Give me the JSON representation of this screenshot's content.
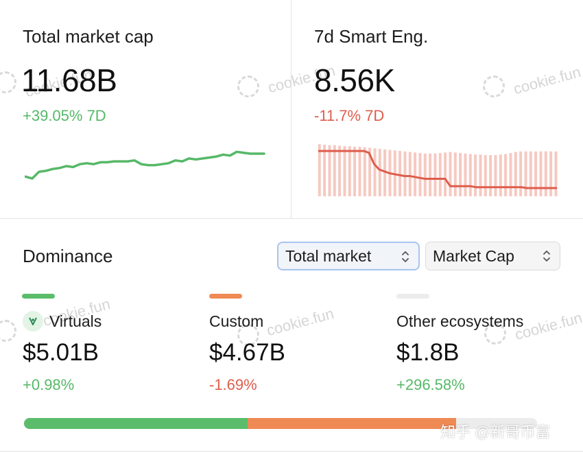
{
  "market_cap": {
    "title": "Total market cap",
    "value": "11.68B",
    "change": "+39.05% 7D",
    "sparkline": [
      0.47,
      0.45,
      0.52,
      0.53,
      0.55,
      0.56,
      0.58,
      0.57,
      0.6,
      0.61,
      0.6,
      0.62,
      0.62,
      0.63,
      0.63,
      0.63,
      0.64,
      0.6,
      0.59,
      0.59,
      0.6,
      0.61,
      0.64,
      0.63,
      0.66,
      0.65,
      0.66,
      0.67,
      0.68,
      0.7,
      0.69,
      0.73,
      0.72,
      0.71,
      0.71,
      0.71
    ]
  },
  "smart_engagement": {
    "title": "7d Smart Eng.",
    "value": "8.56K",
    "change": "-11.7% 7D",
    "line": [
      1.0,
      1.0,
      1.0,
      1.0,
      1.0,
      1.0,
      1.0,
      1.0,
      1.0,
      1.0,
      0.98,
      0.86,
      0.8,
      0.78,
      0.76,
      0.75,
      0.74,
      0.73,
      0.73,
      0.72,
      0.71,
      0.7,
      0.7,
      0.7,
      0.7,
      0.7,
      0.62,
      0.62,
      0.62,
      0.62,
      0.62,
      0.61,
      0.61,
      0.61,
      0.61,
      0.61,
      0.61,
      0.61,
      0.61,
      0.61,
      0.61,
      0.6,
      0.6,
      0.6,
      0.6,
      0.6,
      0.6,
      0.6
    ],
    "bars": [
      1.0,
      0.99,
      0.98,
      0.98,
      0.97,
      0.96,
      0.96,
      0.95,
      0.95,
      0.94,
      0.93,
      0.92,
      0.91,
      0.9,
      0.89,
      0.88,
      0.87,
      0.86,
      0.85,
      0.84,
      0.83,
      0.82,
      0.82,
      0.82,
      0.83,
      0.84,
      0.85,
      0.84,
      0.83,
      0.82,
      0.81,
      0.8,
      0.8,
      0.79,
      0.79,
      0.79,
      0.8,
      0.81,
      0.83,
      0.85,
      0.86,
      0.86,
      0.86,
      0.86,
      0.86,
      0.86,
      0.86,
      0.86
    ]
  },
  "dominance": {
    "title": "Dominance",
    "select_market": "Total market",
    "select_metric": "Market Cap",
    "ecosystems": [
      {
        "name": "Virtuals",
        "value": "$5.01B",
        "change": "+0.98%",
        "color": "#5bbd6b",
        "share": 0.436
      },
      {
        "name": "Custom",
        "value": "$4.67B",
        "change": "-1.69%",
        "color": "#ef8a55",
        "share": 0.406
      },
      {
        "name": "Other ecosystems",
        "value": "$1.8B",
        "change": "+296.58%",
        "color": "#ececec",
        "share": 0.158
      }
    ]
  },
  "watermark": {
    "text": "cookie.fun",
    "footer": "知乎 @新哥币富"
  },
  "colors": {
    "positive": "#56b868",
    "negative": "#de5d4c",
    "bar_fill": "#f6c9c1"
  }
}
